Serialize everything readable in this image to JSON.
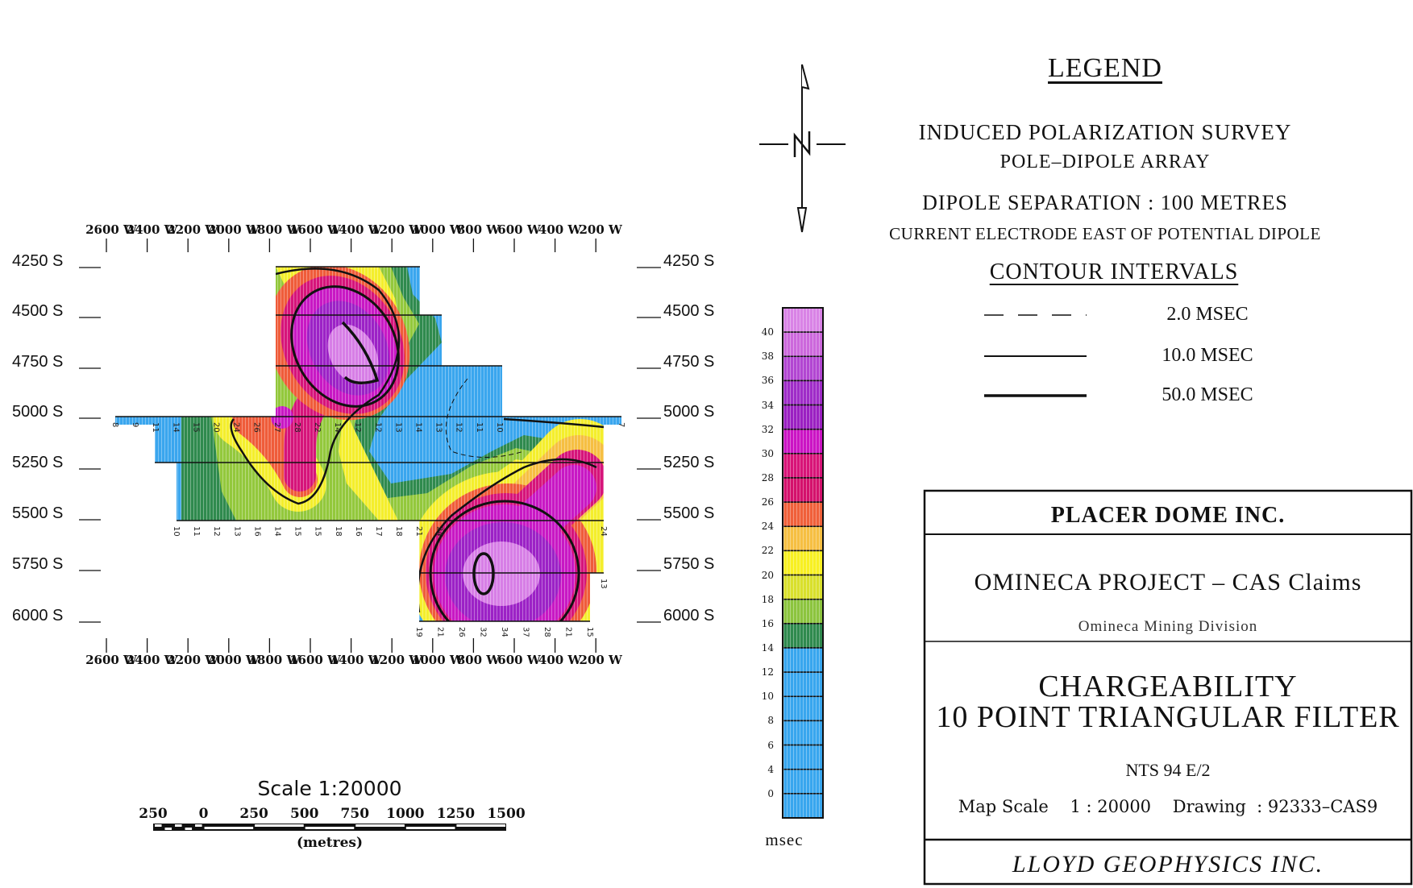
{
  "map": {
    "row_labels": [
      "4250 S",
      "4500 S",
      "4750 S",
      "5000 S",
      "5250 S",
      "5500 S",
      "5750 S",
      "6000 S"
    ],
    "column_labels": [
      "2600 W",
      "2400 W",
      "2200 W",
      "2000 W",
      "1800 W",
      "1600 W",
      "1400 W",
      "1200 W",
      "1000 W",
      "800 W",
      "600 W",
      "400 W",
      "200 W"
    ],
    "profiles": {
      "5000S": {
        "values": [
          "8",
          "9",
          "11",
          "14",
          "15",
          "20",
          "24",
          "26",
          "27",
          "28",
          "22",
          "14",
          "12",
          "12",
          "13",
          "14",
          "13",
          "12",
          "11",
          "10"
        ],
        "end_value": "7"
      },
      "5500S": {
        "values": [
          "10",
          "11",
          "12",
          "13",
          "16",
          "14",
          "15",
          "15",
          "18",
          "16",
          "17",
          "18",
          "21",
          "24"
        ],
        "end_value": "24"
      },
      "6000S": {
        "values": [
          "19",
          "21",
          "26",
          "32",
          "34",
          "37",
          "28",
          "21",
          "15"
        ]
      },
      "5750S": {
        "end_value": "13"
      }
    },
    "colors": {
      "low": "#3aa6ee",
      "dark_green": "#2f8a4e",
      "green": "#93c83c",
      "yellow": "#f4ee2c",
      "orange": "#f6bf42",
      "red": "#ef5c3a",
      "crimson": "#d6147a",
      "magenta": "#c818c4",
      "purple": "#9c22c6",
      "light_purple": "#d77ee6"
    }
  },
  "north_arrow": {
    "icon": "north-arrow-icon"
  },
  "scale_bar": {
    "title": "Scale 1:20000",
    "ticks": [
      "250",
      "0",
      "250",
      "500",
      "750",
      "1000",
      "1250",
      "1500"
    ],
    "units": "(metres)"
  },
  "colorbar": {
    "labels": [
      "40",
      "38",
      "36",
      "34",
      "32",
      "30",
      "28",
      "26",
      "24",
      "22",
      "20",
      "18",
      "16",
      "14",
      "12",
      "10",
      "8",
      "6",
      "4",
      "0"
    ],
    "bins_top_to_bottom": [
      "#d983e6",
      "#cc68dc",
      "#b246d2",
      "#9f2cc8",
      "#9b20c2",
      "#cb14c4",
      "#d81478",
      "#d4116c",
      "#f0603a",
      "#f6bf42",
      "#f8f022",
      "#d9e02c",
      "#8cc43e",
      "#2f8a4e",
      "#38a6ee",
      "#38a6ee",
      "#38a6ee",
      "#38a6ee",
      "#38a6ee",
      "#38a6ee",
      "#38a6ee"
    ],
    "unit": "msec"
  },
  "legend": {
    "title": "LEGEND",
    "survey": "INDUCED POLARIZATION SURVEY",
    "array": "POLE–DIPOLE ARRAY",
    "separation": "DIPOLE SEPARATION : 100 METRES",
    "electrode": "CURRENT ELECTRODE EAST OF POTENTIAL DIPOLE",
    "contour_title": "CONTOUR INTERVALS",
    "contours": [
      {
        "style": "dashed",
        "label": "2.0 MSEC"
      },
      {
        "style": "thin",
        "label": "10.0 MSEC"
      },
      {
        "style": "thick",
        "label": "50.0 MSEC"
      }
    ]
  },
  "title_block": {
    "client": "PLACER DOME INC.",
    "project": "OMINECA PROJECT – CAS Claims",
    "division": "Omineca Mining Division",
    "title_line1": "CHARGEABILITY",
    "title_line2": "10 POINT TRIANGULAR FILTER",
    "nts": "NTS 94 E/2",
    "map_scale_label": "Map Scale",
    "map_scale_value": "1 : 20000",
    "drawing_label": "Drawing",
    "drawing_value": ": 92333–CAS9",
    "contractor": "LLOYD GEOPHYSICS INC."
  }
}
